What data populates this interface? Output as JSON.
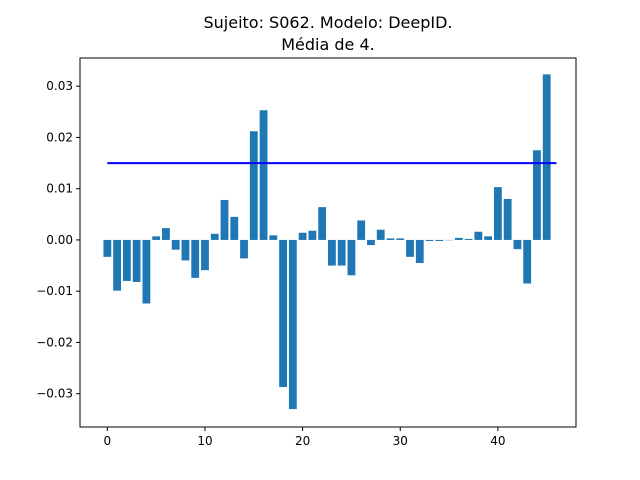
{
  "chart_data": {
    "type": "bar",
    "title_line1": "Sujeito: S062. Modelo: DeepID.",
    "title_line2": "Média de 4.",
    "xlabel": "",
    "ylabel": "",
    "x": [
      0,
      1,
      2,
      3,
      4,
      5,
      6,
      7,
      8,
      9,
      10,
      11,
      12,
      13,
      14,
      15,
      16,
      17,
      18,
      19,
      20,
      21,
      22,
      23,
      24,
      25,
      26,
      27,
      28,
      29,
      30,
      31,
      32,
      33,
      34,
      35,
      36,
      37,
      38,
      39,
      40,
      41,
      42,
      43,
      44,
      45
    ],
    "values": [
      -0.0033,
      -0.0099,
      -0.008,
      -0.0082,
      -0.0124,
      0.0007,
      0.0023,
      -0.0019,
      -0.004,
      -0.0074,
      -0.0059,
      0.0012,
      0.0078,
      0.0045,
      -0.0036,
      0.0212,
      0.0253,
      0.0009,
      -0.0287,
      -0.033,
      0.0014,
      0.0018,
      0.0064,
      -0.005,
      -0.005,
      -0.0069,
      0.0038,
      -0.001,
      0.002,
      0.0003,
      0.0003,
      -0.0033,
      -0.0045,
      -0.0002,
      -0.0002,
      0.0,
      0.0004,
      0.0002,
      0.0016,
      0.0007,
      0.0103,
      0.008,
      -0.0018,
      -0.0085,
      0.0175,
      0.0323
    ],
    "bar_color": "#1f77b4",
    "threshold_line": {
      "y": 0.015,
      "x_start": 0,
      "x_end": 46,
      "color": "#0000ff"
    },
    "xlim": [
      -2.8,
      48
    ],
    "ylim": [
      -0.0365,
      0.0355
    ],
    "x_ticks": [
      0,
      10,
      20,
      30,
      40
    ],
    "y_ticks": [
      -0.03,
      -0.02,
      -0.01,
      0.0,
      0.01,
      0.02,
      0.03
    ],
    "y_tick_labels": [
      "−0.03",
      "−0.02",
      "−0.01",
      "0.00",
      "0.01",
      "0.02",
      "0.03"
    ],
    "grid": false,
    "legend": "none"
  }
}
